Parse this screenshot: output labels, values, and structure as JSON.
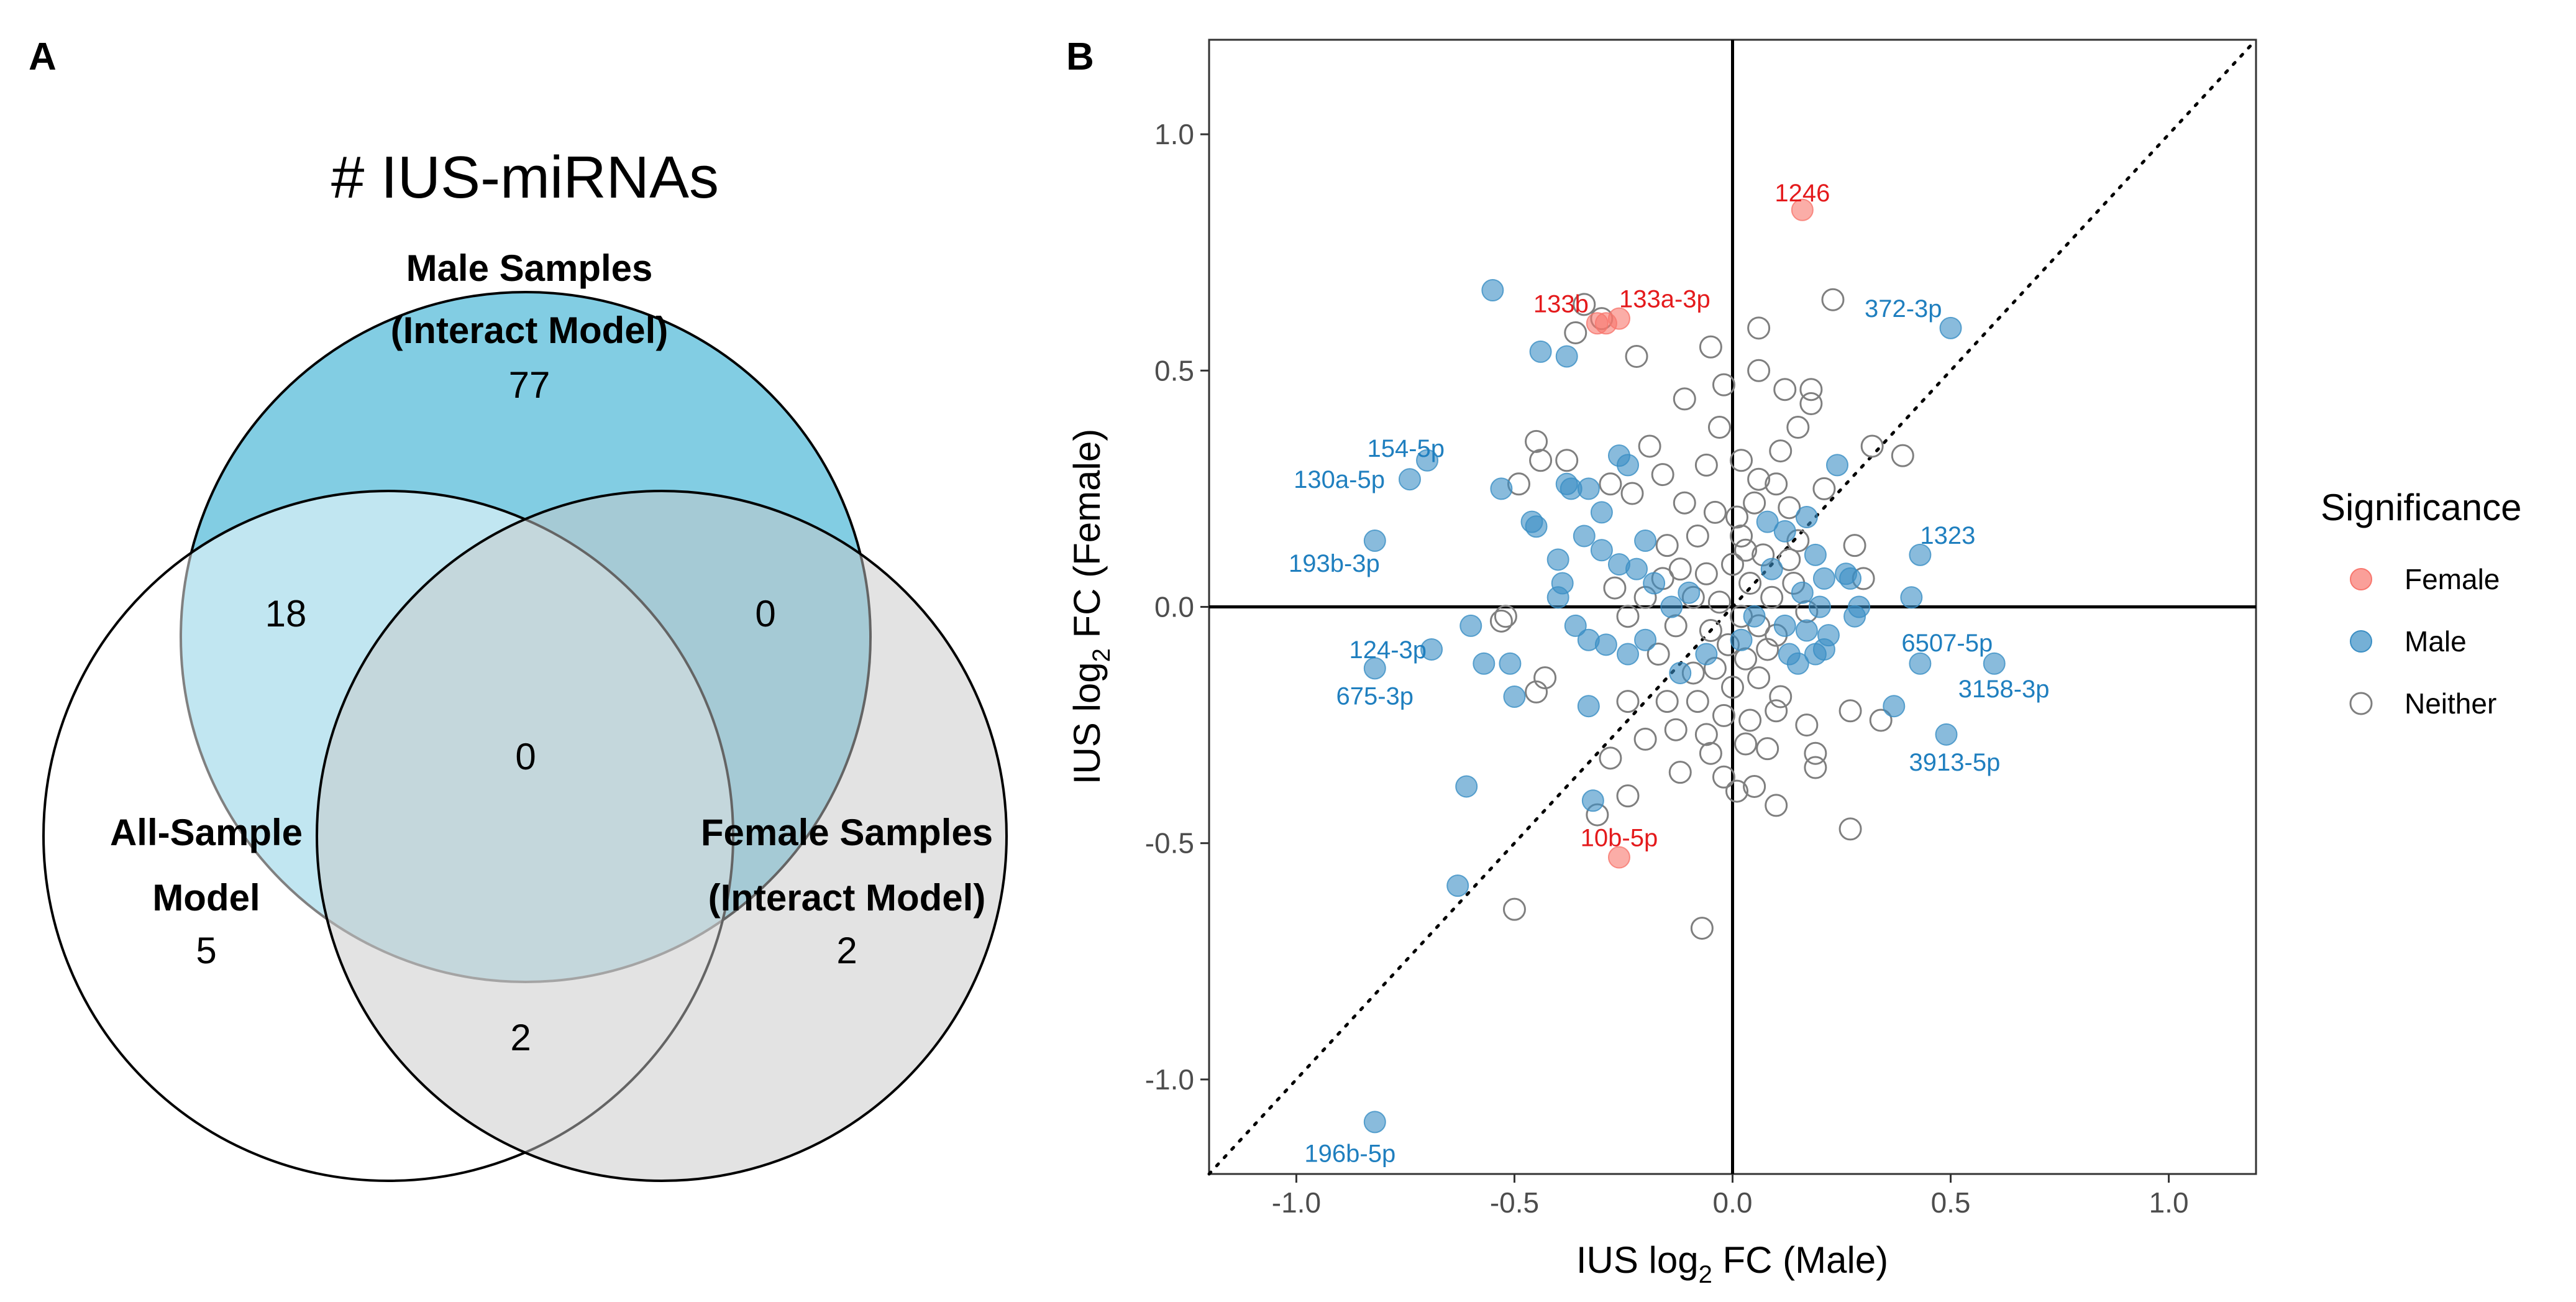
{
  "panels": {
    "a": "A",
    "b": "B"
  },
  "chart_data": [
    {
      "type": "venn",
      "title": "# IUS-miRNAs",
      "colors": {
        "male": "#63c1dc",
        "all": "#ffffff",
        "female": "#c8c8c8"
      },
      "sets": [
        {
          "key": "male",
          "line1": "Male Samples",
          "line2": "(Interact Model)",
          "count": "77"
        },
        {
          "key": "all",
          "line1": "All-Sample",
          "line2": "Model",
          "count": "5"
        },
        {
          "key": "female",
          "line1": "Female Samples",
          "line2": "(Interact Model)",
          "count": "2"
        }
      ],
      "intersections": {
        "male_all": "18",
        "male_female": "0",
        "all_female": "2",
        "all_three": "0"
      }
    },
    {
      "type": "scatter",
      "xlabel_main": "IUS log",
      "xlabel_sub": "2",
      "xlabel_tail": " FC (Male)",
      "ylabel_main": "IUS log",
      "ylabel_sub": "2",
      "ylabel_tail": " FC (Female)",
      "xlim": [
        -1.2,
        1.2
      ],
      "ylim": [
        -1.2,
        1.2
      ],
      "xticks": [
        -1.0,
        -0.5,
        0.0,
        0.5,
        1.0
      ],
      "yticks": [
        -1.0,
        -0.5,
        0.0,
        0.5,
        1.0
      ],
      "xtick_labels": [
        "-1.0",
        "-0.5",
        "0.0",
        "0.5",
        "1.0"
      ],
      "ytick_labels": [
        "-1.0",
        "-0.5",
        "0.0",
        "0.5",
        "1.0"
      ],
      "reference_lines": [
        "x = 0",
        "y = 0",
        "y = x (dotted)"
      ],
      "legend": {
        "title": "Significance",
        "items": [
          {
            "label": "Female",
            "color": "#f8766d",
            "style": "filled"
          },
          {
            "label": "Male",
            "color": "#3a8ec4",
            "style": "filled"
          },
          {
            "label": "Neither",
            "color": "#7f7f7f",
            "style": "open"
          }
        ]
      },
      "series": [
        {
          "name": "Female",
          "color": "#f8766d",
          "points": [
            [
              0.16,
              0.84,
              "1246"
            ],
            [
              -0.31,
              0.6,
              "133b"
            ],
            [
              -0.26,
              0.61,
              "133a-3p"
            ],
            [
              -0.29,
              0.6,
              ""
            ],
            [
              -0.26,
              -0.53,
              "10b-5p"
            ]
          ]
        },
        {
          "name": "Male",
          "color": "#3a8ec4",
          "points": [
            [
              -0.55,
              0.67,
              ""
            ],
            [
              -0.44,
              0.54,
              ""
            ],
            [
              -0.38,
              0.53,
              ""
            ],
            [
              0.5,
              0.59,
              "372-3p"
            ],
            [
              -0.7,
              0.31,
              "154-5p"
            ],
            [
              -0.74,
              0.27,
              "130a-5p"
            ],
            [
              -0.82,
              0.14,
              "193b-3p"
            ],
            [
              0.43,
              0.11,
              "1323"
            ],
            [
              -0.69,
              -0.09,
              "124-3p"
            ],
            [
              -0.82,
              -0.13,
              "675-3p"
            ],
            [
              0.43,
              -0.12,
              "6507-5p"
            ],
            [
              0.6,
              -0.12,
              "3158-3p"
            ],
            [
              0.49,
              -0.27,
              "3913-5p"
            ],
            [
              -0.82,
              -1.09,
              "196b-5p"
            ],
            [
              -0.63,
              -0.59,
              ""
            ],
            [
              -0.61,
              -0.38,
              ""
            ],
            [
              -0.32,
              -0.41,
              ""
            ],
            [
              -0.33,
              -0.21,
              ""
            ],
            [
              -0.5,
              -0.19,
              ""
            ],
            [
              -0.51,
              -0.12,
              ""
            ],
            [
              -0.57,
              -0.12,
              ""
            ],
            [
              -0.6,
              -0.04,
              ""
            ],
            [
              -0.53,
              0.25,
              ""
            ],
            [
              -0.46,
              0.18,
              ""
            ],
            [
              -0.45,
              0.17,
              ""
            ],
            [
              -0.38,
              0.26,
              ""
            ],
            [
              -0.37,
              0.25,
              ""
            ],
            [
              -0.33,
              0.25,
              ""
            ],
            [
              -0.3,
              0.2,
              ""
            ],
            [
              -0.26,
              0.32,
              ""
            ],
            [
              -0.24,
              0.3,
              ""
            ],
            [
              -0.34,
              0.15,
              ""
            ],
            [
              -0.3,
              0.12,
              ""
            ],
            [
              -0.26,
              0.09,
              ""
            ],
            [
              -0.22,
              0.08,
              ""
            ],
            [
              -0.39,
              0.05,
              ""
            ],
            [
              -0.4,
              0.02,
              ""
            ],
            [
              -0.36,
              -0.04,
              ""
            ],
            [
              -0.33,
              -0.07,
              ""
            ],
            [
              -0.29,
              -0.08,
              ""
            ],
            [
              -0.24,
              -0.1,
              ""
            ],
            [
              -0.2,
              -0.07,
              ""
            ],
            [
              -0.18,
              0.05,
              ""
            ],
            [
              -0.14,
              0.0,
              ""
            ],
            [
              -0.1,
              0.03,
              ""
            ],
            [
              -0.12,
              -0.14,
              ""
            ],
            [
              -0.06,
              -0.1,
              ""
            ],
            [
              0.08,
              0.18,
              ""
            ],
            [
              0.12,
              0.16,
              ""
            ],
            [
              0.17,
              0.19,
              ""
            ],
            [
              0.24,
              0.3,
              ""
            ],
            [
              0.19,
              0.11,
              ""
            ],
            [
              0.21,
              0.06,
              ""
            ],
            [
              0.26,
              0.07,
              ""
            ],
            [
              0.27,
              0.06,
              ""
            ],
            [
              0.16,
              0.03,
              ""
            ],
            [
              0.2,
              0.0,
              ""
            ],
            [
              0.29,
              0.0,
              ""
            ],
            [
              0.12,
              -0.04,
              ""
            ],
            [
              0.17,
              -0.05,
              ""
            ],
            [
              0.22,
              -0.06,
              ""
            ],
            [
              0.13,
              -0.1,
              ""
            ],
            [
              0.15,
              -0.12,
              ""
            ],
            [
              0.19,
              -0.1,
              ""
            ],
            [
              0.21,
              -0.09,
              ""
            ],
            [
              0.28,
              -0.02,
              ""
            ],
            [
              0.09,
              0.08,
              ""
            ],
            [
              0.37,
              -0.21,
              ""
            ],
            [
              0.41,
              0.02,
              ""
            ],
            [
              -0.4,
              0.1,
              ""
            ],
            [
              -0.2,
              0.14,
              ""
            ],
            [
              0.05,
              -0.02,
              ""
            ],
            [
              0.02,
              -0.07,
              ""
            ]
          ]
        },
        {
          "name": "Neither",
          "color": "#7f7f7f",
          "points": [
            [
              -0.34,
              0.64,
              ""
            ],
            [
              -0.36,
              0.58,
              ""
            ],
            [
              -0.3,
              0.61,
              ""
            ],
            [
              -0.22,
              0.53,
              ""
            ],
            [
              0.06,
              0.59,
              ""
            ],
            [
              0.23,
              0.65,
              ""
            ],
            [
              -0.05,
              0.55,
              ""
            ],
            [
              -0.02,
              0.47,
              ""
            ],
            [
              0.12,
              0.46,
              ""
            ],
            [
              0.18,
              0.46,
              ""
            ],
            [
              0.18,
              0.43,
              ""
            ],
            [
              0.06,
              0.5,
              ""
            ],
            [
              0.15,
              0.38,
              ""
            ],
            [
              -0.11,
              0.44,
              ""
            ],
            [
              -0.45,
              0.35,
              ""
            ],
            [
              -0.44,
              0.31,
              ""
            ],
            [
              -0.38,
              0.31,
              ""
            ],
            [
              -0.19,
              0.34,
              ""
            ],
            [
              -0.03,
              0.38,
              ""
            ],
            [
              0.11,
              0.33,
              ""
            ],
            [
              0.32,
              0.34,
              ""
            ],
            [
              0.39,
              0.32,
              ""
            ],
            [
              -0.49,
              0.26,
              ""
            ],
            [
              -0.28,
              0.26,
              ""
            ],
            [
              -0.23,
              0.24,
              ""
            ],
            [
              -0.16,
              0.28,
              ""
            ],
            [
              -0.06,
              0.3,
              ""
            ],
            [
              0.02,
              0.31,
              ""
            ],
            [
              0.06,
              0.27,
              ""
            ],
            [
              0.1,
              0.26,
              ""
            ],
            [
              0.21,
              0.25,
              ""
            ],
            [
              -0.11,
              0.22,
              ""
            ],
            [
              -0.04,
              0.2,
              ""
            ],
            [
              0.01,
              0.19,
              ""
            ],
            [
              0.05,
              0.22,
              ""
            ],
            [
              0.13,
              0.21,
              ""
            ],
            [
              0.02,
              0.15,
              ""
            ],
            [
              -0.08,
              0.15,
              ""
            ],
            [
              -0.15,
              0.13,
              ""
            ],
            [
              0.07,
              0.11,
              ""
            ],
            [
              0.13,
              0.1,
              ""
            ],
            [
              0.28,
              0.13,
              ""
            ],
            [
              0.3,
              0.06,
              ""
            ],
            [
              -0.12,
              0.08,
              ""
            ],
            [
              -0.06,
              0.07,
              ""
            ],
            [
              0.0,
              0.09,
              ""
            ],
            [
              0.04,
              0.05,
              ""
            ],
            [
              0.09,
              0.02,
              ""
            ],
            [
              -0.09,
              0.02,
              ""
            ],
            [
              -0.03,
              0.01,
              ""
            ],
            [
              0.02,
              -0.02,
              ""
            ],
            [
              0.06,
              -0.04,
              ""
            ],
            [
              0.1,
              -0.06,
              ""
            ],
            [
              -0.13,
              -0.04,
              ""
            ],
            [
              -0.05,
              -0.05,
              ""
            ],
            [
              -0.01,
              -0.08,
              ""
            ],
            [
              0.03,
              -0.11,
              ""
            ],
            [
              0.08,
              -0.09,
              ""
            ],
            [
              -0.17,
              -0.1,
              ""
            ],
            [
              -0.09,
              -0.14,
              ""
            ],
            [
              -0.04,
              -0.13,
              ""
            ],
            [
              0.0,
              -0.17,
              ""
            ],
            [
              0.06,
              -0.15,
              ""
            ],
            [
              0.11,
              -0.19,
              ""
            ],
            [
              -0.15,
              -0.2,
              ""
            ],
            [
              -0.08,
              -0.2,
              ""
            ],
            [
              -0.02,
              -0.23,
              ""
            ],
            [
              0.04,
              -0.24,
              ""
            ],
            [
              0.1,
              -0.22,
              ""
            ],
            [
              0.17,
              -0.25,
              ""
            ],
            [
              0.27,
              -0.22,
              ""
            ],
            [
              0.34,
              -0.24,
              ""
            ],
            [
              -0.45,
              -0.18,
              ""
            ],
            [
              -0.43,
              -0.15,
              ""
            ],
            [
              -0.53,
              -0.03,
              ""
            ],
            [
              -0.52,
              -0.02,
              ""
            ],
            [
              -0.24,
              -0.2,
              ""
            ],
            [
              -0.28,
              -0.32,
              ""
            ],
            [
              -0.2,
              -0.28,
              ""
            ],
            [
              -0.13,
              -0.26,
              ""
            ],
            [
              -0.06,
              -0.27,
              ""
            ],
            [
              0.03,
              -0.29,
              ""
            ],
            [
              0.08,
              -0.3,
              ""
            ],
            [
              0.19,
              -0.31,
              ""
            ],
            [
              0.19,
              -0.34,
              ""
            ],
            [
              -0.24,
              -0.4,
              ""
            ],
            [
              -0.12,
              -0.35,
              ""
            ],
            [
              -0.02,
              -0.36,
              ""
            ],
            [
              0.05,
              -0.38,
              ""
            ],
            [
              0.1,
              -0.42,
              ""
            ],
            [
              0.27,
              -0.47,
              ""
            ],
            [
              -0.31,
              -0.44,
              ""
            ],
            [
              -0.5,
              -0.64,
              ""
            ],
            [
              -0.07,
              -0.68,
              ""
            ],
            [
              0.01,
              -0.39,
              ""
            ],
            [
              -0.05,
              -0.31,
              ""
            ],
            [
              -0.2,
              0.02,
              ""
            ],
            [
              -0.16,
              0.06,
              ""
            ],
            [
              0.14,
              0.05,
              ""
            ],
            [
              0.17,
              -0.01,
              ""
            ],
            [
              -0.27,
              0.04,
              ""
            ],
            [
              -0.24,
              -0.02,
              ""
            ],
            [
              0.03,
              0.12,
              ""
            ],
            [
              0.15,
              0.14,
              ""
            ]
          ]
        }
      ]
    }
  ]
}
